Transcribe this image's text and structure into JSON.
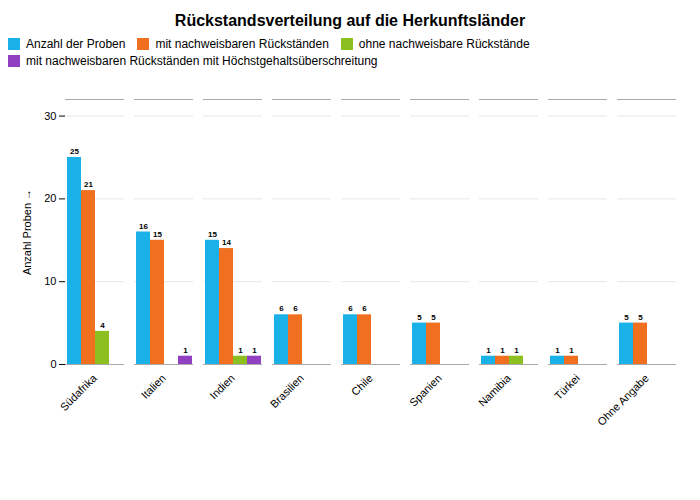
{
  "chart_data": {
    "type": "bar",
    "title": "Rückstandsverteilung auf die Herkunftsländer",
    "ylabel": "Anzahl Proben",
    "categories": [
      "Südafrika",
      "Italien",
      "Indien",
      "Brasilien",
      "Chile",
      "Spanien",
      "Namibia",
      "Türkei",
      "Ohne Angabe"
    ],
    "series": [
      {
        "name": "Anzahl der Proben",
        "color": "#1ab0e8",
        "values": [
          25,
          16,
          15,
          6,
          6,
          5,
          1,
          1,
          5
        ]
      },
      {
        "name": "mit nachweisbaren Rückständen",
        "color": "#f07020",
        "values": [
          21,
          15,
          14,
          6,
          6,
          5,
          1,
          1,
          5
        ]
      },
      {
        "name": "ohne nachweisbare Rückstände",
        "color": "#8cbf20",
        "values": [
          4,
          0,
          1,
          0,
          0,
          0,
          1,
          0,
          0
        ]
      },
      {
        "name": "mit nachweisbaren Rückständen mit Höchstgehaltsüberschreitung",
        "color": "#9040c0",
        "values": [
          0,
          1,
          1,
          0,
          0,
          0,
          0,
          0,
          0
        ]
      }
    ],
    "ylim": [
      0,
      32
    ],
    "yticks": [
      0,
      10,
      20,
      30
    ],
    "grid": true,
    "legend": "top",
    "data_labels": true
  }
}
